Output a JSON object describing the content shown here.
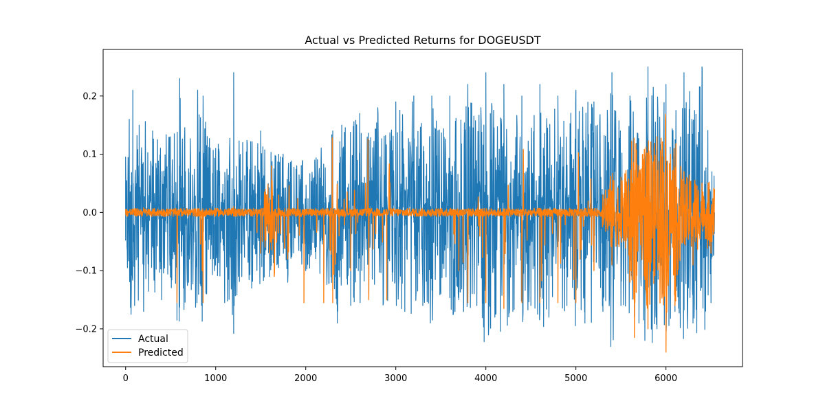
{
  "chart_data": {
    "type": "line",
    "title": "Actual vs Predicted Returns for DOGEUSDT",
    "xlabel": "",
    "ylabel": "",
    "xlim": [
      -250,
      6850
    ],
    "ylim": [
      -0.265,
      0.28
    ],
    "x_ticks": [
      0,
      1000,
      2000,
      3000,
      4000,
      5000,
      6000
    ],
    "x_tick_labels": [
      "0",
      "1000",
      "2000",
      "3000",
      "4000",
      "5000",
      "6000"
    ],
    "y_ticks": [
      -0.2,
      -0.1,
      0.0,
      0.1,
      0.2
    ],
    "y_tick_labels": [
      "−0.2",
      "−0.1",
      "0.0",
      "0.1",
      "0.2"
    ],
    "legend_position": "lower-left",
    "grid": false,
    "n_points": 6540,
    "series": [
      {
        "name": "Actual",
        "color": "#1f77b4",
        "x": [
          0,
          20,
          40,
          60,
          80,
          100,
          150,
          200,
          300,
          400,
          500,
          540,
          570,
          600,
          700,
          800,
          850,
          860,
          900,
          1000,
          1100,
          1200,
          1205,
          1300,
          1400,
          1500,
          1600,
          1700,
          1800,
          1900,
          2000,
          2100,
          2200,
          2300,
          2350,
          2400,
          2500,
          2600,
          2700,
          2800,
          2900,
          3000,
          3100,
          3200,
          3300,
          3400,
          3500,
          3600,
          3700,
          3800,
          3900,
          4000,
          4100,
          4200,
          4300,
          4400,
          4500,
          4600,
          4700,
          4800,
          4900,
          5000,
          5100,
          5200,
          5300,
          5400,
          5500,
          5600,
          5700,
          5800,
          5900,
          6000,
          6100,
          6200,
          6300,
          6400,
          6500,
          6540
        ],
        "y": [
          0.095,
          -0.095,
          0.16,
          -0.175,
          0.21,
          -0.16,
          0.15,
          -0.17,
          0.14,
          -0.15,
          0.13,
          0.135,
          -0.185,
          0.23,
          -0.12,
          0.21,
          -0.187,
          0.2,
          -0.14,
          0.11,
          -0.155,
          0.24,
          -0.16,
          0.12,
          -0.13,
          0.14,
          -0.11,
          0.1,
          -0.12,
          0.08,
          -0.1,
          0.09,
          -0.12,
          0.14,
          -0.19,
          0.15,
          -0.16,
          0.17,
          -0.14,
          0.18,
          -0.15,
          0.19,
          -0.17,
          0.2,
          -0.16,
          0.2,
          -0.14,
          0.2,
          -0.15,
          0.22,
          -0.16,
          0.24,
          -0.18,
          0.22,
          -0.17,
          0.2,
          -0.16,
          0.22,
          -0.18,
          0.2,
          -0.16,
          0.21,
          -0.19,
          0.19,
          -0.17,
          0.24,
          -0.16,
          0.2,
          -0.19,
          0.25,
          -0.2,
          0.22,
          -0.17,
          0.24,
          -0.19,
          0.25,
          -0.155,
          0.0
        ]
      },
      {
        "name": "Predicted",
        "color": "#ff7f0e",
        "x": [
          0,
          100,
          200,
          300,
          400,
          500,
          560,
          570,
          600,
          700,
          800,
          850,
          860,
          900,
          1000,
          1100,
          1200,
          1300,
          1400,
          1500,
          1550,
          1600,
          1620,
          1650,
          1700,
          1800,
          1900,
          1980,
          2000,
          2100,
          2200,
          2250,
          2300,
          2400,
          2500,
          2600,
          2700,
          2800,
          2900,
          3000,
          3100,
          3200,
          3300,
          3400,
          3500,
          3600,
          3700,
          3800,
          3900,
          4000,
          4100,
          4200,
          4300,
          4400,
          4500,
          4600,
          4700,
          4800,
          4900,
          5000,
          5100,
          5200,
          5300,
          5400,
          5500,
          5600,
          5650,
          5700,
          5800,
          5900,
          6000,
          6050,
          6100,
          6200,
          6300,
          6400,
          6500,
          6540
        ],
        "y": [
          0.005,
          -0.005,
          0.008,
          0.003,
          -0.004,
          0.006,
          -0.003,
          -0.155,
          0.005,
          -0.004,
          0.006,
          -0.1,
          -0.155,
          0.004,
          -0.003,
          0.005,
          0.01,
          -0.004,
          0.005,
          -0.07,
          0.04,
          -0.07,
          0.08,
          -0.11,
          0.03,
          -0.08,
          0.005,
          -0.155,
          0.004,
          -0.005,
          -0.155,
          0.006,
          -0.155,
          0.005,
          -0.1,
          0.004,
          -0.15,
          0.006,
          -0.15,
          0.004,
          -0.004,
          0.006,
          -0.005,
          0.005,
          -0.003,
          0.006,
          -0.1,
          -0.155,
          0.005,
          -0.155,
          0.004,
          -0.165,
          0.005,
          -0.155,
          -0.004,
          -0.155,
          0.006,
          -0.155,
          -0.004,
          -0.155,
          0.005,
          -0.1,
          0.03,
          -0.09,
          0.06,
          -0.12,
          -0.215,
          0.08,
          -0.2,
          0.13,
          -0.24,
          0.1,
          -0.16,
          0.07,
          -0.09,
          0.05,
          -0.07,
          0.04
        ]
      }
    ]
  }
}
